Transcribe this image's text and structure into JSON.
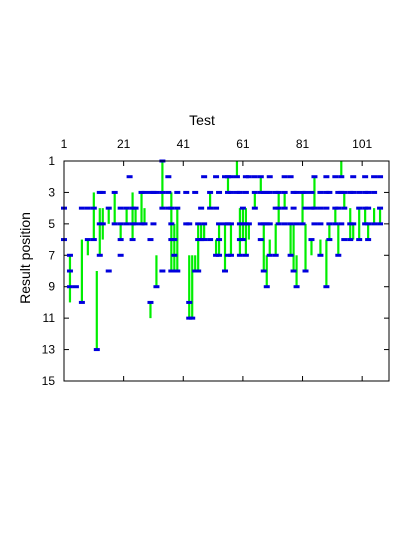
{
  "chart_data": {
    "type": "scatter",
    "title": "",
    "xlabel": "Test",
    "ylabel": "Result position",
    "x_axis_position": "top",
    "y_inverted": true,
    "xlim": [
      1,
      110
    ],
    "ylim": [
      1,
      15
    ],
    "x_ticks": [
      1,
      21,
      41,
      61,
      81,
      101
    ],
    "y_ticks": [
      1,
      3,
      5,
      7,
      9,
      11,
      13,
      15
    ],
    "grid": false,
    "legend": "none",
    "colors": {
      "range_line": "#00ee00",
      "marker": "#0000dd",
      "frame": "#000000"
    },
    "tests": [
      {
        "x": 1,
        "markers": [
          4,
          6
        ]
      },
      {
        "x": 3,
        "markers": [
          7,
          8,
          9
        ],
        "range": [
          7,
          10
        ]
      },
      {
        "x": 5,
        "markers": [
          9
        ]
      },
      {
        "x": 7,
        "markers": [
          4,
          10
        ],
        "range": [
          6,
          10
        ]
      },
      {
        "x": 9,
        "markers": [
          4,
          6
        ],
        "range": [
          6,
          7
        ]
      },
      {
        "x": 11,
        "markers": [
          4,
          6
        ],
        "range": [
          3,
          6
        ]
      },
      {
        "x": 12,
        "markers": [
          13
        ],
        "range": [
          8,
          13
        ]
      },
      {
        "x": 13,
        "markers": [
          3,
          5,
          7
        ],
        "range": [
          4,
          7
        ]
      },
      {
        "x": 14,
        "markers": [
          3,
          5
        ],
        "range": [
          4,
          6
        ]
      },
      {
        "x": 16,
        "markers": [
          4,
          8
        ],
        "range": [
          4,
          5
        ]
      },
      {
        "x": 18,
        "markers": [
          3,
          5
        ],
        "range": [
          3,
          5
        ]
      },
      {
        "x": 20,
        "markers": [
          4,
          5,
          6,
          7
        ],
        "range": [
          5,
          6
        ]
      },
      {
        "x": 22,
        "markers": [
          4,
          5
        ],
        "range": [
          4,
          5
        ]
      },
      {
        "x": 23,
        "markers": [
          2
        ]
      },
      {
        "x": 24,
        "markers": [
          4,
          5,
          6
        ],
        "range": [
          3,
          6
        ]
      },
      {
        "x": 25,
        "markers": [
          4,
          5
        ],
        "range": [
          4,
          5
        ]
      },
      {
        "x": 27,
        "markers": [
          3,
          5
        ],
        "range": [
          3,
          5
        ]
      },
      {
        "x": 28,
        "markers": [
          3,
          5
        ],
        "range": [
          4,
          5
        ]
      },
      {
        "x": 30,
        "markers": [
          3,
          6,
          10
        ],
        "range": [
          10,
          11
        ]
      },
      {
        "x": 31,
        "markers": [
          3,
          5
        ]
      },
      {
        "x": 32,
        "markers": [
          3,
          9
        ],
        "range": [
          7,
          9
        ]
      },
      {
        "x": 34,
        "markers": [
          1,
          3,
          4,
          8
        ],
        "range": [
          1,
          4
        ]
      },
      {
        "x": 36,
        "markers": [
          2,
          3,
          4
        ]
      },
      {
        "x": 37,
        "markers": [
          4,
          5,
          6,
          8
        ],
        "range": [
          3,
          8
        ]
      },
      {
        "x": 38,
        "markers": [
          6,
          7,
          8
        ],
        "range": [
          5,
          8
        ]
      },
      {
        "x": 39,
        "markers": [
          3,
          4,
          8
        ],
        "range": [
          4,
          8
        ]
      },
      {
        "x": 42,
        "markers": [
          3,
          5
        ]
      },
      {
        "x": 43,
        "markers": [
          5,
          10,
          11
        ],
        "range": [
          7,
          11
        ]
      },
      {
        "x": 44,
        "markers": [
          11
        ],
        "range": [
          7,
          11
        ]
      },
      {
        "x": 45,
        "markers": [
          3,
          8
        ],
        "range": [
          7,
          8
        ]
      },
      {
        "x": 46,
        "markers": [
          5,
          6,
          8
        ],
        "range": [
          5,
          8
        ]
      },
      {
        "x": 47,
        "markers": [
          4,
          6
        ],
        "range": [
          5,
          6
        ]
      },
      {
        "x": 48,
        "markers": [
          2,
          5,
          6
        ],
        "range": [
          5,
          6
        ]
      },
      {
        "x": 50,
        "markers": [
          3,
          4,
          6
        ],
        "range": [
          3,
          4
        ]
      },
      {
        "x": 52,
        "markers": [
          2,
          4,
          7
        ],
        "range": [
          6,
          7
        ]
      },
      {
        "x": 53,
        "markers": [
          3,
          5,
          6,
          7
        ],
        "range": [
          5,
          7
        ]
      },
      {
        "x": 55,
        "markers": [
          2,
          5,
          8
        ],
        "range": [
          5,
          8
        ]
      },
      {
        "x": 56,
        "markers": [
          2,
          3,
          5,
          7
        ],
        "range": [
          2,
          3
        ]
      },
      {
        "x": 57,
        "markers": [
          2,
          3,
          5,
          7
        ],
        "range": [
          5,
          7
        ]
      },
      {
        "x": 59,
        "markers": [
          2,
          3
        ],
        "range": [
          1,
          2
        ]
      },
      {
        "x": 60,
        "markers": [
          3,
          5,
          6,
          7
        ],
        "range": [
          4,
          7
        ]
      },
      {
        "x": 61,
        "markers": [
          4,
          5,
          6
        ],
        "range": [
          4,
          6
        ]
      },
      {
        "x": 62,
        "markers": [
          2,
          3,
          5,
          7
        ],
        "range": [
          4,
          7
        ]
      },
      {
        "x": 63,
        "markers": [
          2,
          5
        ],
        "range": [
          5,
          6
        ]
      },
      {
        "x": 65,
        "markers": [
          2,
          3,
          4
        ],
        "range": [
          3,
          4
        ]
      },
      {
        "x": 67,
        "markers": [
          2,
          3,
          5,
          6
        ],
        "range": [
          2,
          3
        ]
      },
      {
        "x": 68,
        "markers": [
          3,
          5,
          8
        ],
        "range": [
          5,
          8
        ]
      },
      {
        "x": 69,
        "markers": [
          3,
          5,
          9
        ],
        "range": [
          7,
          9
        ]
      },
      {
        "x": 70,
        "markers": [
          2,
          3,
          5,
          7
        ],
        "range": [
          6,
          7
        ]
      },
      {
        "x": 72,
        "markers": [
          3,
          4,
          7
        ],
        "range": [
          5,
          7
        ]
      },
      {
        "x": 73,
        "markers": [
          3,
          4,
          5
        ],
        "range": [
          3,
          5
        ]
      },
      {
        "x": 75,
        "markers": [
          2,
          3,
          4,
          5
        ],
        "range": [
          3,
          4
        ]
      },
      {
        "x": 77,
        "markers": [
          2,
          5,
          7
        ],
        "range": [
          5,
          7
        ]
      },
      {
        "x": 78,
        "markers": [
          3,
          4,
          8
        ],
        "range": [
          5,
          8
        ]
      },
      {
        "x": 79,
        "markers": [
          3,
          5,
          9
        ],
        "range": [
          7,
          9
        ]
      },
      {
        "x": 81,
        "markers": [
          3,
          5
        ],
        "range": [
          3,
          5
        ]
      },
      {
        "x": 82,
        "markers": [
          3,
          4,
          8
        ],
        "range": [
          5,
          8
        ]
      },
      {
        "x": 84,
        "markers": [
          3,
          4,
          6
        ],
        "range": [
          6,
          7
        ]
      },
      {
        "x": 85,
        "markers": [
          2,
          4,
          5
        ],
        "range": [
          2,
          4
        ]
      },
      {
        "x": 87,
        "markers": [
          3,
          4,
          5,
          7
        ],
        "range": [
          6,
          7
        ]
      },
      {
        "x": 89,
        "markers": [
          2,
          3,
          4,
          9
        ],
        "range": [
          6,
          9
        ]
      },
      {
        "x": 90,
        "markers": [
          3,
          5,
          6
        ],
        "range": [
          5,
          6
        ]
      },
      {
        "x": 92,
        "markers": [
          2,
          4,
          5
        ],
        "range": [
          4,
          5
        ]
      },
      {
        "x": 93,
        "markers": [
          3,
          4,
          7
        ],
        "range": [
          5,
          7
        ]
      },
      {
        "x": 94,
        "markers": [
          2,
          3,
          5
        ],
        "range": [
          1,
          2
        ]
      },
      {
        "x": 95,
        "markers": [
          3,
          4,
          6
        ],
        "range": [
          3,
          4
        ]
      },
      {
        "x": 97,
        "markers": [
          3,
          5,
          6
        ],
        "range": [
          4,
          6
        ]
      },
      {
        "x": 98,
        "markers": [
          2,
          3,
          5
        ],
        "range": [
          5,
          6
        ]
      },
      {
        "x": 100,
        "markers": [
          3,
          4,
          6
        ],
        "range": [
          4,
          6
        ]
      },
      {
        "x": 102,
        "markers": [
          2,
          3,
          4,
          5
        ],
        "range": [
          4,
          5
        ]
      },
      {
        "x": 103,
        "markers": [
          3,
          4,
          5,
          6
        ],
        "range": [
          5,
          6
        ]
      },
      {
        "x": 105,
        "markers": [
          2,
          3,
          5
        ],
        "range": [
          4,
          5
        ]
      },
      {
        "x": 107,
        "markers": [
          2,
          4,
          5
        ],
        "range": [
          4,
          5
        ]
      }
    ]
  }
}
